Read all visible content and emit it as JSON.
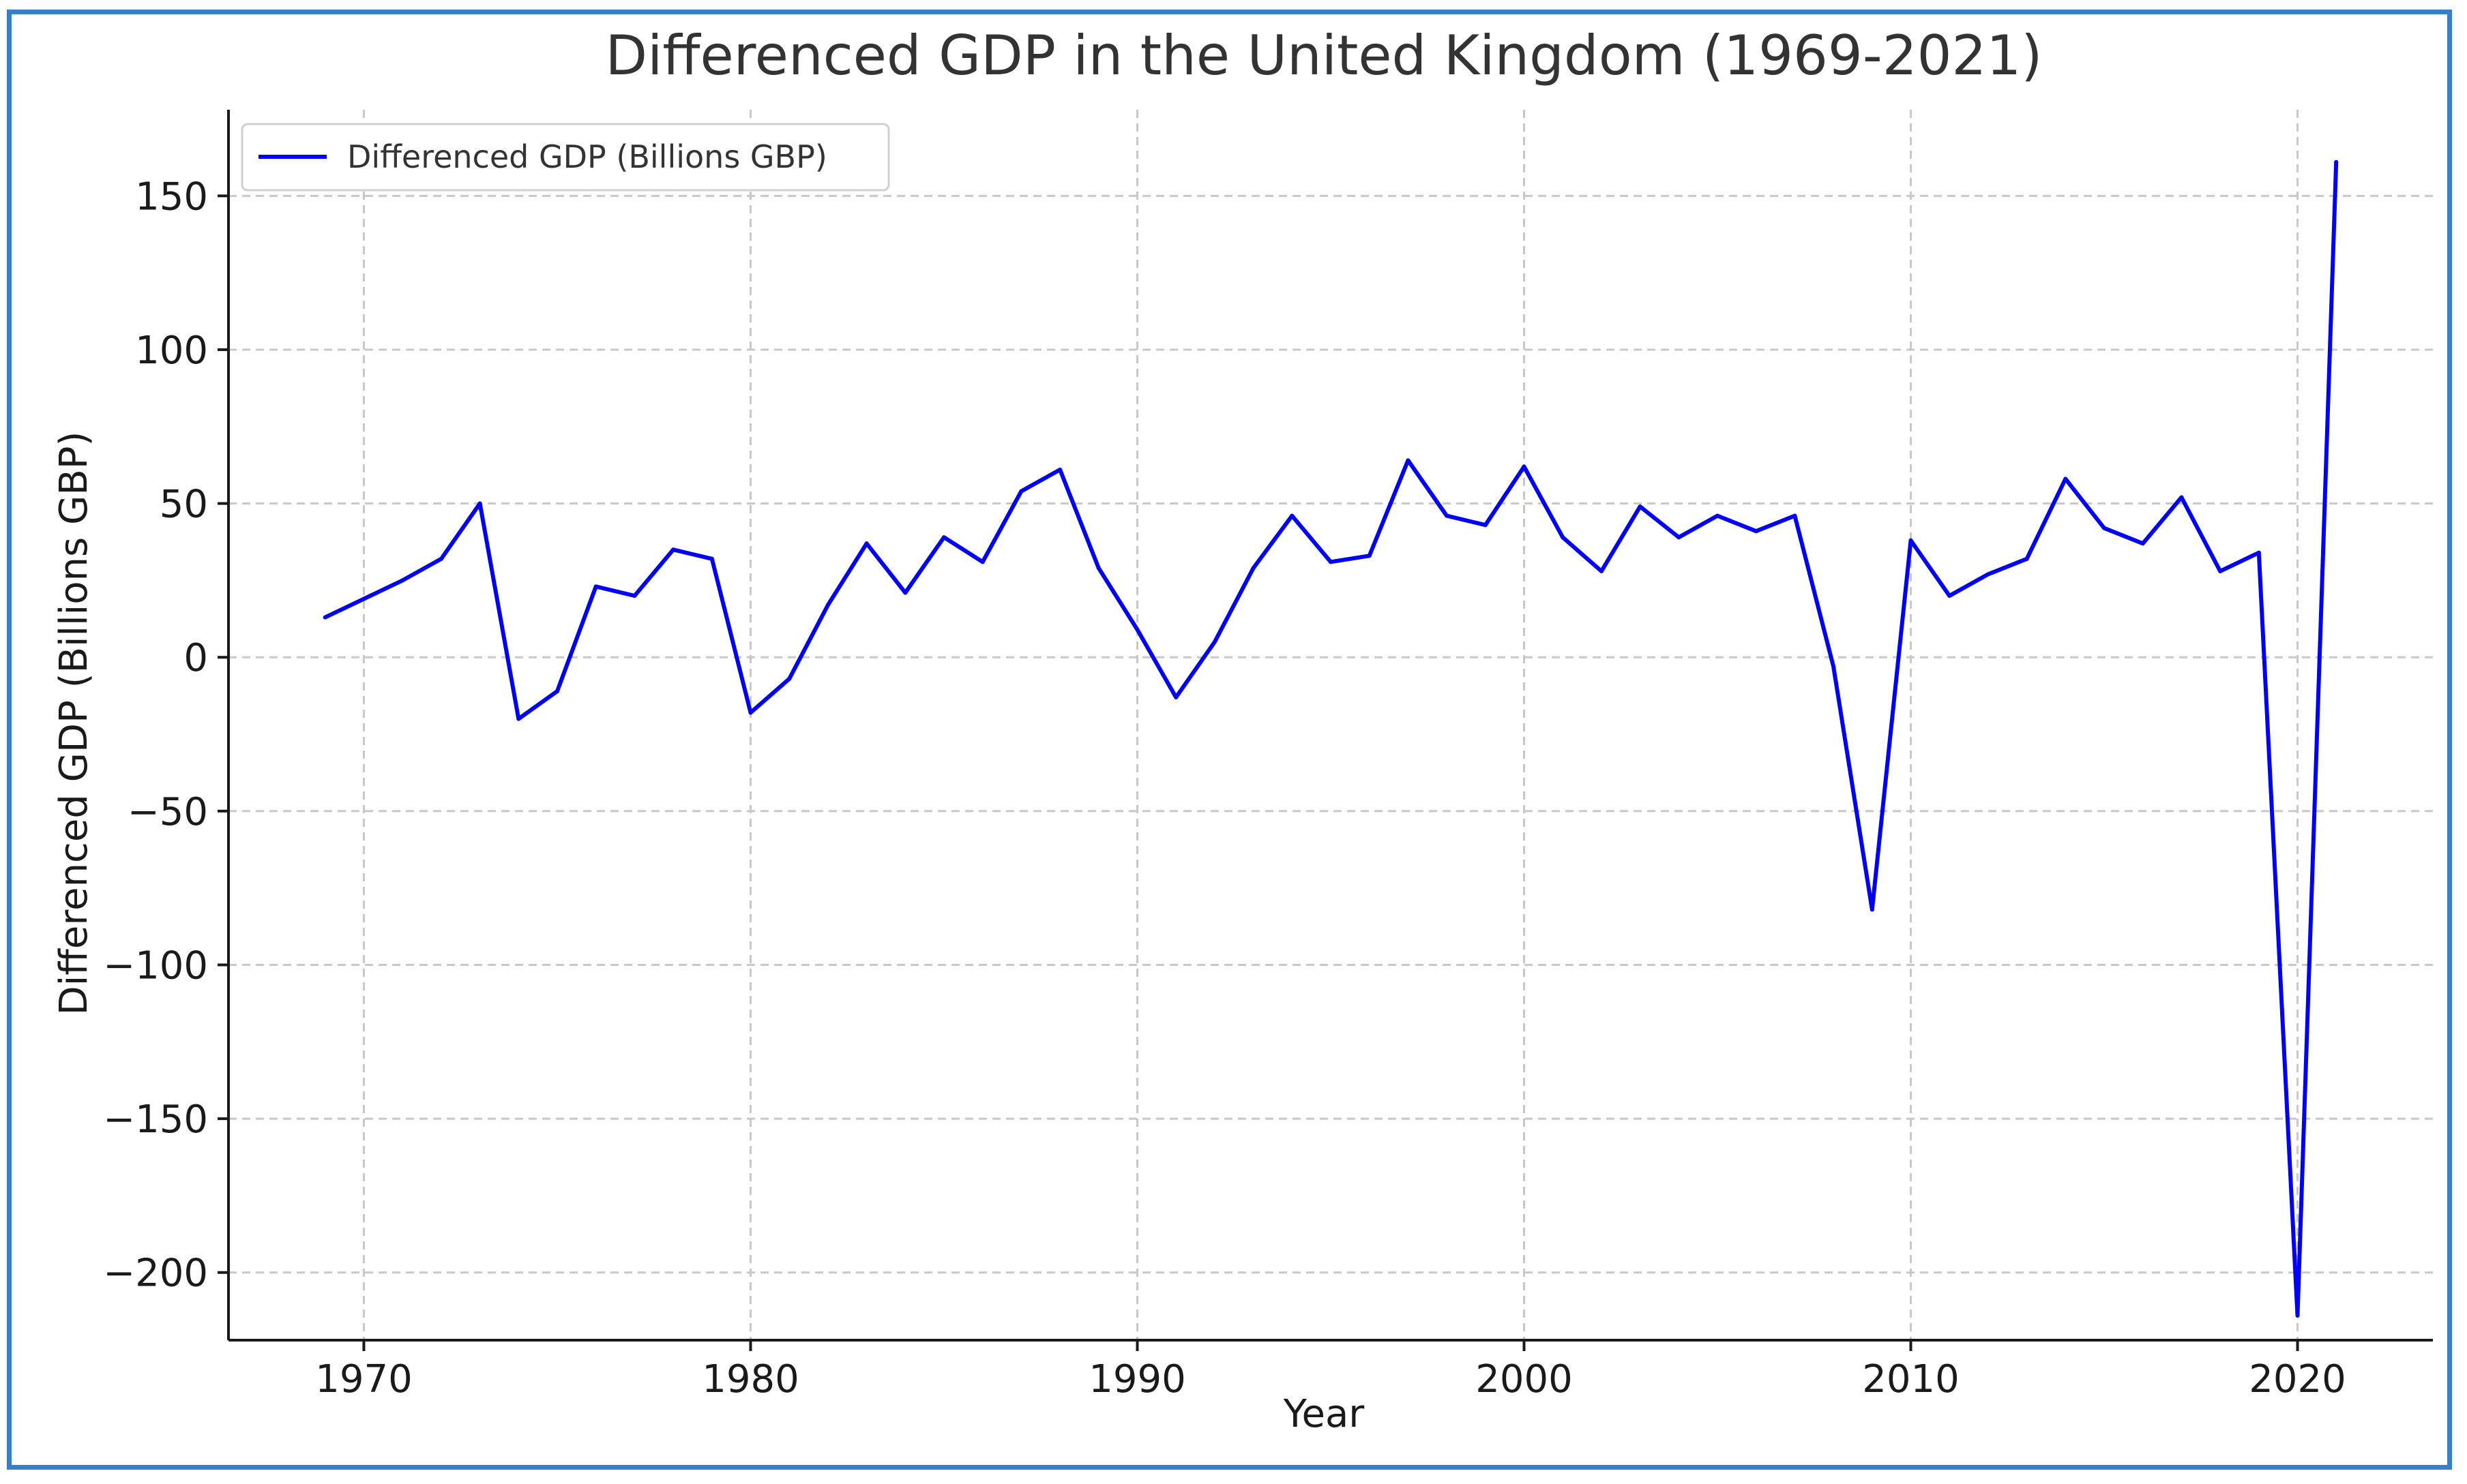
{
  "chart_data": {
    "type": "line",
    "title": "Differenced GDP in the United Kingdom (1969-2021)",
    "xlabel": "Year",
    "ylabel": "Differenced GDP (Billions GBP)",
    "xlim": [
      1966.5,
      2023.5
    ],
    "ylim": [
      -222,
      178
    ],
    "x_ticks": [
      1970,
      1980,
      1990,
      2000,
      2010,
      2020
    ],
    "x_tick_labels": [
      "1970",
      "1980",
      "1990",
      "2000",
      "2010",
      "2020"
    ],
    "y_ticks": [
      150,
      100,
      50,
      0,
      -50,
      -100,
      -150,
      -200
    ],
    "y_tick_labels": [
      "150",
      "100",
      "50",
      "0",
      "−50",
      "−100",
      "−150",
      "−200"
    ],
    "grid": true,
    "legend_position": "top-left",
    "series": [
      {
        "name": "Differenced GDP (Billions GBP)",
        "color": "#0000ff",
        "x": [
          1969,
          1970,
          1971,
          1972,
          1973,
          1974,
          1975,
          1976,
          1977,
          1978,
          1979,
          1980,
          1981,
          1982,
          1983,
          1984,
          1985,
          1986,
          1987,
          1988,
          1989,
          1990,
          1991,
          1992,
          1993,
          1994,
          1995,
          1996,
          1997,
          1998,
          1999,
          2000,
          2001,
          2002,
          2003,
          2004,
          2005,
          2006,
          2007,
          2008,
          2009,
          2010,
          2011,
          2012,
          2013,
          2014,
          2015,
          2016,
          2017,
          2018,
          2019,
          2020,
          2021
        ],
        "values": [
          13,
          19,
          25,
          32,
          50,
          -20,
          -11,
          23,
          20,
          35,
          32,
          -18,
          -7,
          17,
          37,
          21,
          39,
          31,
          54,
          61,
          29,
          9,
          -13,
          5,
          29,
          46,
          31,
          33,
          64,
          46,
          43,
          62,
          39,
          28,
          49,
          39,
          46,
          41,
          46,
          -3,
          -82,
          38,
          20,
          27,
          32,
          58,
          42,
          37,
          52,
          28,
          34,
          -214,
          161
        ]
      }
    ]
  }
}
